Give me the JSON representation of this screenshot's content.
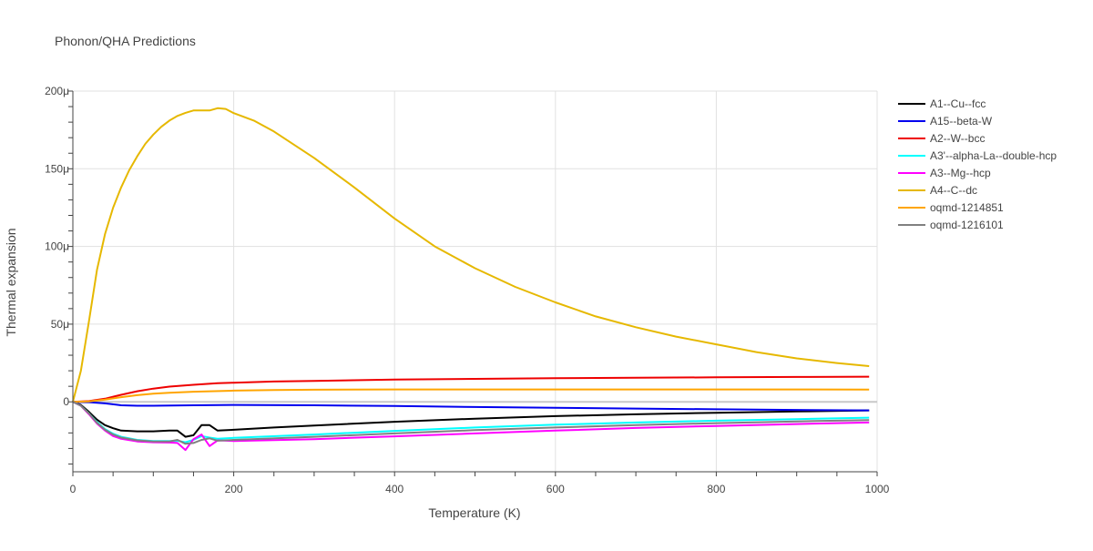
{
  "chart_data": {
    "type": "line",
    "title": "Phonon/QHA Predictions",
    "xlabel": "Temperature (K)",
    "ylabel": "Thermal expansion",
    "xlim": [
      0,
      1000
    ],
    "ylim": [
      -4.5e-05,
      0.0002
    ],
    "x_ticks": [
      {
        "value": 0,
        "label": "0"
      },
      {
        "value": 200,
        "label": "200"
      },
      {
        "value": 400,
        "label": "400"
      },
      {
        "value": 600,
        "label": "600"
      },
      {
        "value": 800,
        "label": "800"
      },
      {
        "value": 1000,
        "label": "1000"
      }
    ],
    "y_ticks": [
      {
        "value": 0,
        "label": "0"
      },
      {
        "value": 5e-05,
        "label": "50μ"
      },
      {
        "value": 0.0001,
        "label": "100μ"
      },
      {
        "value": 0.00015,
        "label": "150μ"
      },
      {
        "value": 0.0002,
        "label": "200μ"
      }
    ],
    "grid": true,
    "legend_position": "right",
    "series": [
      {
        "name": "A1--Cu--fcc",
        "color": "#000000",
        "points": [
          [
            0,
            0
          ],
          [
            10,
            -2e-06
          ],
          [
            20,
            -6.5e-06
          ],
          [
            30,
            -1.15e-05
          ],
          [
            40,
            -1.5e-05
          ],
          [
            50,
            -1.7e-05
          ],
          [
            60,
            -1.85e-05
          ],
          [
            80,
            -1.9e-05
          ],
          [
            100,
            -1.9e-05
          ],
          [
            120,
            -1.85e-05
          ],
          [
            130,
            -1.85e-05
          ],
          [
            140,
            -2.25e-05
          ],
          [
            150,
            -2.15e-05
          ],
          [
            160,
            -1.5e-05
          ],
          [
            170,
            -1.5e-05
          ],
          [
            180,
            -1.85e-05
          ],
          [
            200,
            -1.8e-05
          ],
          [
            250,
            -1.65e-05
          ],
          [
            300,
            -1.52e-05
          ],
          [
            400,
            -1.28e-05
          ],
          [
            500,
            -1.08e-05
          ],
          [
            600,
            -9.2e-06
          ],
          [
            700,
            -8e-06
          ],
          [
            800,
            -7e-06
          ],
          [
            900,
            -6.2e-06
          ],
          [
            990,
            -5.5e-06
          ]
        ]
      },
      {
        "name": "A15--beta-W",
        "color": "#0000ee",
        "points": [
          [
            0,
            0
          ],
          [
            20,
            -2e-07
          ],
          [
            40,
            -1e-06
          ],
          [
            60,
            -2.2e-06
          ],
          [
            80,
            -2.5e-06
          ],
          [
            100,
            -2.5e-06
          ],
          [
            150,
            -2.2e-06
          ],
          [
            200,
            -2e-06
          ],
          [
            300,
            -2.2e-06
          ],
          [
            400,
            -2.7e-06
          ],
          [
            500,
            -3.3e-06
          ],
          [
            600,
            -3.8e-06
          ],
          [
            700,
            -4.3e-06
          ],
          [
            800,
            -4.8e-06
          ],
          [
            900,
            -5.2e-06
          ],
          [
            990,
            -5.5e-06
          ]
        ]
      },
      {
        "name": "A2--W--bcc",
        "color": "#ee0000",
        "points": [
          [
            0,
            0
          ],
          [
            20,
            5e-07
          ],
          [
            40,
            2e-06
          ],
          [
            60,
            4.5e-06
          ],
          [
            80,
            6.8e-06
          ],
          [
            100,
            8.5e-06
          ],
          [
            120,
            9.8e-06
          ],
          [
            150,
            1.1e-05
          ],
          [
            180,
            1.2e-05
          ],
          [
            200,
            1.23e-05
          ],
          [
            250,
            1.31e-05
          ],
          [
            300,
            1.35e-05
          ],
          [
            400,
            1.43e-05
          ],
          [
            500,
            1.48e-05
          ],
          [
            600,
            1.52e-05
          ],
          [
            700,
            1.55e-05
          ],
          [
            800,
            1.58e-05
          ],
          [
            900,
            1.6e-05
          ],
          [
            990,
            1.62e-05
          ]
        ]
      },
      {
        "name": "A3'--alpha-La--double-hcp",
        "color": "#00ffff",
        "points": [
          [
            0,
            0
          ],
          [
            10,
            -2.5e-06
          ],
          [
            20,
            -7.5e-06
          ],
          [
            30,
            -1.3e-05
          ],
          [
            40,
            -1.75e-05
          ],
          [
            50,
            -2.05e-05
          ],
          [
            60,
            -2.25e-05
          ],
          [
            80,
            -2.45e-05
          ],
          [
            100,
            -2.52e-05
          ],
          [
            120,
            -2.52e-05
          ],
          [
            130,
            -2.5e-05
          ],
          [
            140,
            -2.6e-05
          ],
          [
            150,
            -2.45e-05
          ],
          [
            160,
            -2.2e-05
          ],
          [
            170,
            -2.3e-05
          ],
          [
            180,
            -2.38e-05
          ],
          [
            200,
            -2.32e-05
          ],
          [
            300,
            -2.1e-05
          ],
          [
            400,
            -1.87e-05
          ],
          [
            500,
            -1.65e-05
          ],
          [
            600,
            -1.47e-05
          ],
          [
            700,
            -1.33e-05
          ],
          [
            800,
            -1.21e-05
          ],
          [
            900,
            -1.11e-05
          ],
          [
            990,
            -1.02e-05
          ]
        ]
      },
      {
        "name": "A3--Mg--hcp",
        "color": "#ff00ff",
        "points": [
          [
            0,
            0
          ],
          [
            10,
            -2.5e-06
          ],
          [
            20,
            -8e-06
          ],
          [
            30,
            -1.4e-05
          ],
          [
            40,
            -1.85e-05
          ],
          [
            50,
            -2.2e-05
          ],
          [
            60,
            -2.38e-05
          ],
          [
            80,
            -2.55e-05
          ],
          [
            100,
            -2.6e-05
          ],
          [
            120,
            -2.62e-05
          ],
          [
            130,
            -2.65e-05
          ],
          [
            140,
            -3.1e-05
          ],
          [
            150,
            -2.4e-05
          ],
          [
            160,
            -2.1e-05
          ],
          [
            170,
            -2.85e-05
          ],
          [
            180,
            -2.48e-05
          ],
          [
            200,
            -2.52e-05
          ],
          [
            300,
            -2.4e-05
          ],
          [
            400,
            -2.22e-05
          ],
          [
            500,
            -2.03e-05
          ],
          [
            600,
            -1.85e-05
          ],
          [
            700,
            -1.68e-05
          ],
          [
            800,
            -1.55e-05
          ],
          [
            900,
            -1.43e-05
          ],
          [
            990,
            -1.33e-05
          ]
        ]
      },
      {
        "name": "A4--C--dc",
        "color": "#e6b800",
        "points": [
          [
            0,
            0
          ],
          [
            10,
            2e-05
          ],
          [
            20,
            5.2e-05
          ],
          [
            30,
            8.5e-05
          ],
          [
            40,
            0.000108
          ],
          [
            50,
            0.000125
          ],
          [
            60,
            0.000138
          ],
          [
            70,
            0.000149
          ],
          [
            80,
            0.000158
          ],
          [
            90,
            0.000166
          ],
          [
            100,
            0.000172
          ],
          [
            110,
            0.000177
          ],
          [
            120,
            0.000181
          ],
          [
            130,
            0.000184
          ],
          [
            140,
            0.000186
          ],
          [
            150,
            0.0001875
          ],
          [
            170,
            0.0001875
          ],
          [
            180,
            0.000189
          ],
          [
            190,
            0.0001885
          ],
          [
            200,
            0.0001858
          ],
          [
            225,
            0.000181
          ],
          [
            250,
            0.000174
          ],
          [
            300,
            0.000157
          ],
          [
            350,
            0.000138
          ],
          [
            400,
            0.000118
          ],
          [
            450,
            0.0001
          ],
          [
            500,
            8.6e-05
          ],
          [
            550,
            7.4e-05
          ],
          [
            600,
            6.4e-05
          ],
          [
            650,
            5.5e-05
          ],
          [
            700,
            4.8e-05
          ],
          [
            750,
            4.2e-05
          ],
          [
            800,
            3.7e-05
          ],
          [
            850,
            3.2e-05
          ],
          [
            900,
            2.8e-05
          ],
          [
            950,
            2.5e-05
          ],
          [
            990,
            2.3e-05
          ]
        ]
      },
      {
        "name": "oqmd-1214851",
        "color": "#ffa500",
        "points": [
          [
            0,
            0
          ],
          [
            20,
            3e-07
          ],
          [
            40,
            1.5e-06
          ],
          [
            60,
            3e-06
          ],
          [
            80,
            4.3e-06
          ],
          [
            100,
            5.3e-06
          ],
          [
            120,
            5.9e-06
          ],
          [
            150,
            6.5e-06
          ],
          [
            200,
            7.2e-06
          ],
          [
            250,
            7.6e-06
          ],
          [
            300,
            7.8e-06
          ],
          [
            400,
            8e-06
          ],
          [
            500,
            8e-06
          ],
          [
            600,
            8e-06
          ],
          [
            700,
            8e-06
          ],
          [
            800,
            8e-06
          ],
          [
            900,
            8e-06
          ],
          [
            990,
            7.9e-06
          ]
        ]
      },
      {
        "name": "oqmd-1216101",
        "color": "#808080",
        "points": [
          [
            0,
            0
          ],
          [
            10,
            -2.5e-06
          ],
          [
            20,
            -7.5e-06
          ],
          [
            30,
            -1.35e-05
          ],
          [
            40,
            -1.8e-05
          ],
          [
            50,
            -2.1e-05
          ],
          [
            60,
            -2.3e-05
          ],
          [
            80,
            -2.48e-05
          ],
          [
            100,
            -2.55e-05
          ],
          [
            120,
            -2.55e-05
          ],
          [
            130,
            -2.45e-05
          ],
          [
            140,
            -2.7e-05
          ],
          [
            150,
            -2.65e-05
          ],
          [
            160,
            -2.45e-05
          ],
          [
            170,
            -2.35e-05
          ],
          [
            180,
            -2.5e-05
          ],
          [
            200,
            -2.45e-05
          ],
          [
            300,
            -2.25e-05
          ],
          [
            400,
            -2.03e-05
          ],
          [
            500,
            -1.82e-05
          ],
          [
            600,
            -1.65e-05
          ],
          [
            700,
            -1.5e-05
          ],
          [
            800,
            -1.37e-05
          ],
          [
            900,
            -1.26e-05
          ],
          [
            990,
            -1.17e-05
          ]
        ]
      }
    ]
  }
}
